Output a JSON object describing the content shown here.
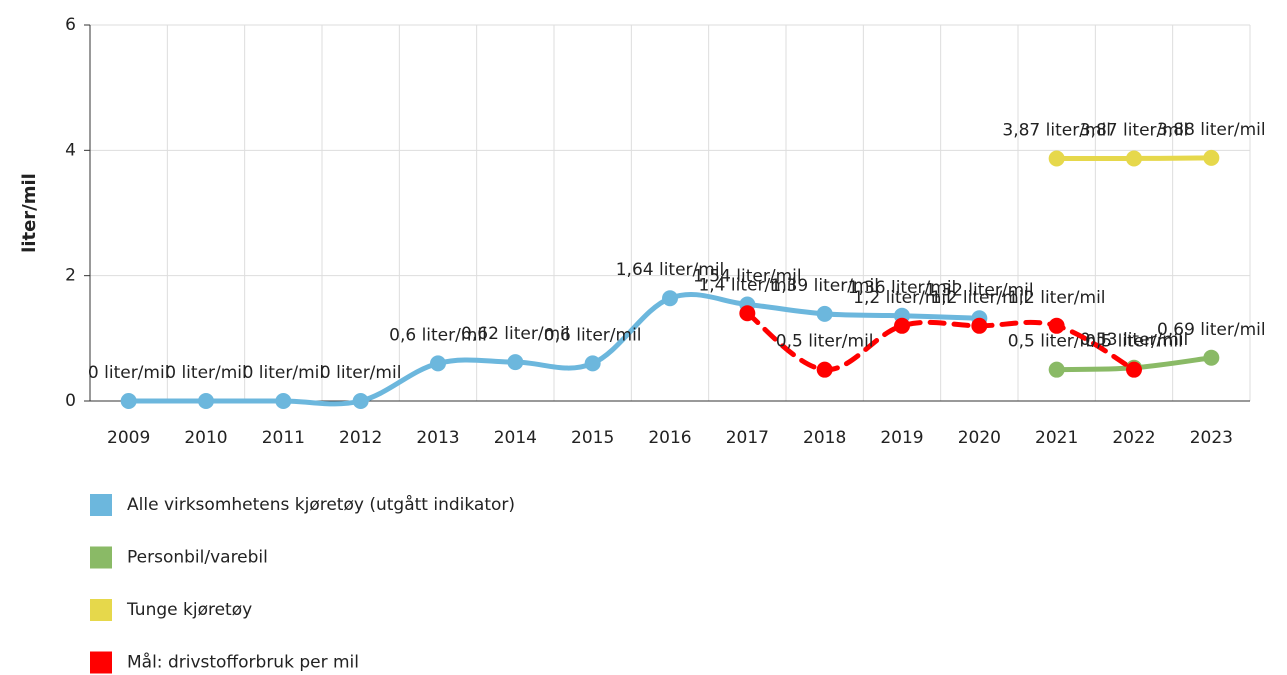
{
  "chart_data": {
    "type": "line",
    "y_label": "liter/mil",
    "categories": [
      "2009",
      "2010",
      "2011",
      "2012",
      "2013",
      "2014",
      "2015",
      "2016",
      "2017",
      "2018",
      "2019",
      "2020",
      "2021",
      "2022",
      "2023"
    ],
    "ylim": [
      0,
      6
    ],
    "yticks": [
      0,
      2,
      4,
      6
    ],
    "grid": true,
    "series": [
      {
        "name": "Alle virksomhetens kjøretøy (utgått indikator)",
        "color": "#6cb7dd",
        "dashed": false,
        "values": [
          0,
          0,
          0,
          0,
          0.6,
          0.62,
          0.6,
          1.64,
          1.54,
          1.39,
          1.36,
          1.32,
          null,
          null,
          null
        ],
        "value_labels": [
          "0 liter/mil",
          "0 liter/mil",
          "0 liter/mil",
          "0 liter/mil",
          "0,6 liter/mil",
          "0,62 liter/mil",
          "0,6 liter/mil",
          "1,64 liter/mil",
          "1,54 liter/mil",
          "1,39 liter/mil",
          "1,36 liter/mil",
          "1,32 liter/mil",
          null,
          null,
          null
        ]
      },
      {
        "name": "Personbil/varebil",
        "color": "#8aba66",
        "dashed": false,
        "values": [
          null,
          null,
          null,
          null,
          null,
          null,
          null,
          null,
          null,
          null,
          null,
          null,
          0.5,
          0.53,
          0.69
        ],
        "value_labels": [
          null,
          null,
          null,
          null,
          null,
          null,
          null,
          null,
          null,
          null,
          null,
          null,
          "0,5 liter/mil",
          "0,53 liter/mil",
          "0,69 liter/mil"
        ]
      },
      {
        "name": "Tunge kjøretøy",
        "color": "#e6d84b",
        "dashed": false,
        "values": [
          null,
          null,
          null,
          null,
          null,
          null,
          null,
          null,
          null,
          null,
          null,
          null,
          3.87,
          3.87,
          3.88
        ],
        "value_labels": [
          null,
          null,
          null,
          null,
          null,
          null,
          null,
          null,
          null,
          null,
          null,
          null,
          "3,87 liter/mil",
          "3,87 liter/mil",
          "3,88 liter/mil"
        ]
      },
      {
        "name": "Mål: drivstofforbruk per mil",
        "color": "#ff0000",
        "dashed": true,
        "values": [
          null,
          null,
          null,
          null,
          null,
          null,
          null,
          null,
          1.4,
          0.5,
          1.2,
          1.2,
          1.2,
          0.5,
          null
        ],
        "value_labels": [
          null,
          null,
          null,
          null,
          null,
          null,
          null,
          null,
          "1,4 liter/mil",
          "0,5 liter/mil",
          "1,2 liter/mil",
          "1,2 liter/mil",
          "1,2 liter/mil",
          "0,5 liter/mil",
          null
        ]
      }
    ]
  }
}
